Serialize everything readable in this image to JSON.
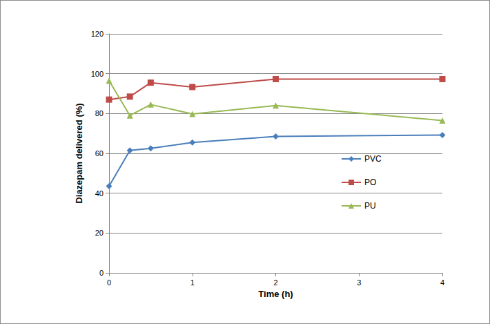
{
  "chart_data": {
    "type": "line",
    "x_label": "Time (h)",
    "y_label": "Diazepam delivered (%)",
    "x": [
      0,
      0.25,
      0.5,
      1,
      2,
      4
    ],
    "series": [
      {
        "name": "PVC",
        "color": "#4a7ebb",
        "marker": "diamond",
        "values": [
          43.5,
          61.5,
          62.5,
          65.5,
          68.5,
          69.2
        ]
      },
      {
        "name": "PO",
        "color": "#be4b48",
        "marker": "square",
        "values": [
          87,
          88.5,
          95.5,
          93.3,
          97.3,
          97.3
        ]
      },
      {
        "name": "PU",
        "color": "#98b954",
        "marker": "triangle",
        "values": [
          96.5,
          79,
          84.5,
          79.8,
          84,
          76.5
        ]
      }
    ],
    "xlim": [
      0,
      4
    ],
    "xticks": [
      0,
      1,
      2,
      3,
      4
    ],
    "ylim": [
      0,
      120
    ],
    "yticks": [
      0,
      20,
      40,
      60,
      80,
      100,
      120
    ],
    "grid": true,
    "legend": "right"
  }
}
